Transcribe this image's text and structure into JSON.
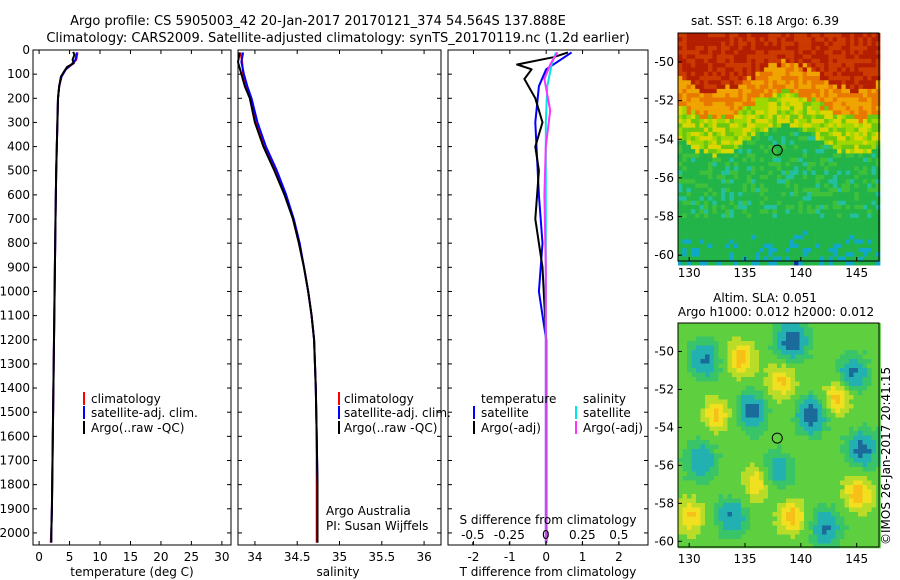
{
  "figure": {
    "title_line1": "Argo profile: CS 5905003_42 20-Jan-2017 20170121_374 54.564S 137.888E",
    "title_line2": "Climatology: CARS2009. Satellite-adjusted climatology: synTS_20170119.nc (1.2d earlier)",
    "credit": "Argo Australia",
    "pi": "PI: Susan Wijffels",
    "side_stamp": "©IMOS 26-Jan-2017 20:41:15"
  },
  "colors": {
    "climatology": "#ff0000",
    "satellite": "#0000ff",
    "argo": "#000000",
    "satellite_diff_salinity": "#00e5e5",
    "argo_diff_salinity": "#ff33ff"
  },
  "chart_data": [
    {
      "id": "temperature",
      "type": "line",
      "xlabel": "temperature (deg C)",
      "xlim": [
        -1,
        31.5
      ],
      "xticks": [
        0,
        5,
        10,
        15,
        20,
        25,
        30
      ],
      "xtick_labels": [
        "0",
        "5",
        "10",
        "15",
        "20",
        "25",
        "30"
      ],
      "ylim": [
        0,
        2050
      ],
      "yticks": [
        0,
        100,
        200,
        300,
        400,
        500,
        600,
        700,
        800,
        900,
        1000,
        1100,
        1200,
        1300,
        1400,
        1500,
        1600,
        1700,
        1800,
        1900,
        2000
      ],
      "ytick_labels": [
        "0",
        "100",
        "200",
        "300",
        "400",
        "500",
        "600",
        "700",
        "800",
        "900",
        "1000",
        "1100",
        "1200",
        "1300",
        "1400",
        "1500",
        "1600",
        "1700",
        "1800",
        "1900",
        "2000"
      ],
      "legend": [
        "climatology",
        "satellite-adj. clim.",
        "Argo(..raw -QC)"
      ],
      "series": [
        {
          "name": "climatology",
          "color_key": "climatology",
          "x": [
            6.3,
            6.1,
            5.4,
            4.4,
            3.6,
            3.3,
            3.1,
            3.0,
            2.9,
            2.8,
            2.7,
            2.6,
            2.5,
            2.4,
            2.3,
            2.2,
            2.1,
            2.0,
            1.9
          ],
          "y": [
            10,
            40,
            60,
            80,
            110,
            150,
            200,
            300,
            400,
            500,
            700,
            900,
            1100,
            1300,
            1500,
            1700,
            1900,
            2000,
            2040
          ]
        },
        {
          "name": "satellite-adj. clim.",
          "color_key": "satellite",
          "x": [
            6.2,
            6.0,
            5.3,
            4.4,
            3.7,
            3.3,
            3.1,
            3.0,
            2.9,
            2.8,
            2.7,
            2.6,
            2.5,
            2.4,
            2.3,
            2.2,
            2.1,
            2.0,
            2.0
          ],
          "y": [
            10,
            40,
            60,
            80,
            110,
            150,
            200,
            300,
            400,
            500,
            700,
            900,
            1100,
            1300,
            1500,
            1700,
            1900,
            2000,
            2040
          ]
        },
        {
          "name": "Argo(..raw -QC)",
          "color_key": "argo",
          "x": [
            5.6,
            5.8,
            5.5,
            5.7,
            4.6,
            4.2,
            3.6,
            3.3,
            3.1,
            3.0,
            2.9,
            2.8,
            2.7,
            2.6,
            2.5,
            2.4,
            2.3,
            2.2,
            2.1,
            2.0,
            2.0
          ],
          "y": [
            8,
            20,
            40,
            55,
            70,
            85,
            110,
            150,
            200,
            300,
            400,
            500,
            700,
            900,
            1100,
            1300,
            1500,
            1700,
            1900,
            2000,
            2040
          ]
        }
      ]
    },
    {
      "id": "salinity",
      "type": "line",
      "xlabel": "salinity",
      "xlim": [
        33.8,
        36.2
      ],
      "xticks": [
        34,
        34.5,
        35,
        35.5,
        36
      ],
      "xtick_labels": [
        "34",
        "34.5",
        "35",
        "35.5",
        "36"
      ],
      "ylim": [
        0,
        2050
      ],
      "yticks": [
        0,
        100,
        200,
        300,
        400,
        500,
        600,
        700,
        800,
        900,
        1000,
        1100,
        1200,
        1300,
        1400,
        1500,
        1600,
        1700,
        1800,
        1900,
        2000
      ],
      "legend": [
        "climatology",
        "satellite-adj. clim.",
        "Argo(..raw -QC)"
      ],
      "series": [
        {
          "name": "climatology",
          "color_key": "climatology",
          "x": [
            33.83,
            33.85,
            33.86,
            33.9,
            33.95,
            34.02,
            34.12,
            34.25,
            34.36,
            34.45,
            34.52,
            34.58,
            34.63,
            34.67,
            34.7,
            34.72,
            34.73,
            34.73,
            34.73
          ],
          "y": [
            10,
            50,
            100,
            150,
            200,
            300,
            400,
            500,
            600,
            700,
            800,
            900,
            1000,
            1100,
            1200,
            1400,
            1600,
            1800,
            2040
          ]
        },
        {
          "name": "satellite-adj. clim.",
          "color_key": "satellite",
          "x": [
            33.86,
            33.84,
            33.87,
            33.91,
            33.96,
            34.03,
            34.13,
            34.26,
            34.37,
            34.46,
            34.53,
            34.58,
            34.63,
            34.67,
            34.7,
            34.72,
            34.73,
            34.74,
            34.74
          ],
          "y": [
            10,
            50,
            100,
            150,
            200,
            300,
            400,
            500,
            600,
            700,
            800,
            900,
            1000,
            1100,
            1200,
            1400,
            1600,
            1800,
            2040
          ]
        },
        {
          "name": "Argo(..raw -QC)",
          "color_key": "argo",
          "x": [
            33.82,
            33.8,
            33.84,
            33.88,
            33.94,
            34.0,
            34.1,
            34.23,
            34.35,
            34.45,
            34.52,
            34.58,
            34.63,
            34.67,
            34.7,
            34.72,
            34.73,
            34.74,
            34.74
          ],
          "y": [
            10,
            50,
            100,
            150,
            200,
            300,
            400,
            500,
            600,
            700,
            800,
            900,
            1000,
            1100,
            1200,
            1400,
            1600,
            1800,
            2040
          ]
        }
      ]
    },
    {
      "id": "difference",
      "type": "line",
      "xlabel": "T difference from climatology",
      "xlabel_top": "S difference from climatology",
      "xlim": [
        -2.7,
        2.8
      ],
      "xticks": [
        -2,
        -1,
        0,
        1,
        2
      ],
      "xtick_labels": [
        "-2",
        "-1",
        "0",
        "1",
        "2"
      ],
      "x2lim": [
        -0.67,
        0.7
      ],
      "x2ticks": [
        -0.5,
        -0.25,
        0,
        0.25,
        0.5
      ],
      "x2tick_labels": [
        "-0.5",
        "-0.25",
        "0",
        "0.25",
        "0.5"
      ],
      "ylim": [
        0,
        2050
      ],
      "yticks": [
        0,
        100,
        200,
        300,
        400,
        500,
        600,
        700,
        800,
        900,
        1000,
        1100,
        1200,
        1300,
        1400,
        1500,
        1600,
        1700,
        1800,
        1900,
        2000
      ],
      "legend_titles": [
        "temperature",
        "salinity"
      ],
      "legend": [
        {
          "group": "temperature",
          "label": "satellite",
          "color_key": "satellite"
        },
        {
          "group": "temperature",
          "label": "Argo(-adj)",
          "color_key": "argo"
        },
        {
          "group": "salinity",
          "label": "satellite",
          "color_key": "satellite_diff_salinity"
        },
        {
          "group": "salinity",
          "label": "Argo(-adj)",
          "color_key": "argo_diff_salinity"
        }
      ],
      "series": [
        {
          "name": "T satellite",
          "axis": "T",
          "color_key": "satellite",
          "x": [
            0.7,
            0.4,
            0.0,
            -0.2,
            -0.3,
            -0.2,
            -0.1,
            -0.2,
            0.0,
            0.0,
            0.0,
            0.0,
            0.0
          ],
          "y": [
            10,
            40,
            80,
            150,
            300,
            600,
            800,
            1000,
            1200,
            1400,
            1600,
            1800,
            2040
          ]
        },
        {
          "name": "T Argo(-adj)",
          "axis": "T",
          "color_key": "argo",
          "x": [
            0.6,
            0.2,
            -0.8,
            -0.4,
            -0.6,
            -0.3,
            -0.1,
            -0.3,
            -0.2,
            -0.3,
            -0.1,
            0.0,
            0.0,
            0.0,
            0.0
          ],
          "y": [
            10,
            30,
            60,
            80,
            120,
            200,
            300,
            400,
            500,
            700,
            900,
            1200,
            1500,
            1800,
            2040
          ]
        },
        {
          "name": "S satellite",
          "axis": "S",
          "color_key": "satellite_diff_salinity",
          "x": [
            0.07,
            0.04,
            0.01,
            0.0,
            0.0,
            0.0,
            0.0,
            0.0,
            0.0
          ],
          "y": [
            10,
            60,
            150,
            300,
            600,
            900,
            1200,
            1600,
            2040
          ]
        },
        {
          "name": "S Argo(-adj)",
          "axis": "S",
          "color_key": "argo_diff_salinity",
          "x": [
            0.08,
            0.03,
            -0.01,
            0.03,
            0.0,
            -0.01,
            0.0,
            0.0,
            0.0,
            0.0
          ],
          "y": [
            10,
            60,
            120,
            250,
            400,
            600,
            900,
            1200,
            1600,
            2040
          ]
        }
      ]
    },
    {
      "id": "sst_map",
      "type": "heatmap",
      "title": "sat. SST: 6.18 Argo: 6.39",
      "xlim": [
        129,
        147
      ],
      "xticks": [
        130,
        135,
        140,
        145
      ],
      "xtick_labels": [
        "130",
        "135",
        "140",
        "145"
      ],
      "ylim": [
        -60.3,
        -48.5
      ],
      "yticks": [
        -50,
        -52,
        -54,
        -56,
        -58,
        -60
      ],
      "ytick_labels": [
        "-50",
        "-52",
        "-54",
        "-56",
        "-58",
        "-60"
      ],
      "marker": {
        "lon": 137.888,
        "lat": -54.564
      }
    },
    {
      "id": "sla_map",
      "type": "heatmap",
      "title_line1": "Altim. SLA: 0.051",
      "title_line2": "Argo h1000: 0.012 h2000: 0.012",
      "xlim": [
        129,
        147
      ],
      "xticks": [
        130,
        135,
        140,
        145
      ],
      "xtick_labels": [
        "130",
        "135",
        "140",
        "145"
      ],
      "ylim": [
        -60.3,
        -48.5
      ],
      "yticks": [
        -50,
        -52,
        -54,
        -56,
        -58,
        -60
      ],
      "ytick_labels": [
        "-50",
        "-52",
        "-54",
        "-56",
        "-58",
        "-60"
      ],
      "marker": {
        "lon": 137.888,
        "lat": -54.564
      }
    }
  ]
}
